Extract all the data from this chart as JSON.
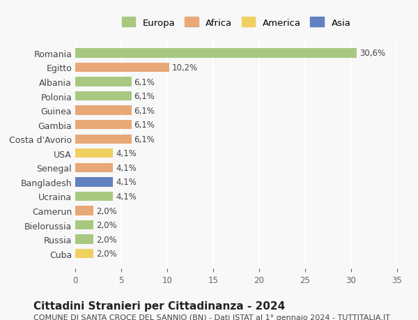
{
  "countries": [
    "Romania",
    "Egitto",
    "Albania",
    "Polonia",
    "Guinea",
    "Gambia",
    "Costa d'Avorio",
    "USA",
    "Senegal",
    "Bangladesh",
    "Ucraina",
    "Camerun",
    "Bielorussia",
    "Russia",
    "Cuba"
  ],
  "values": [
    30.6,
    10.2,
    6.1,
    6.1,
    6.1,
    6.1,
    6.1,
    4.1,
    4.1,
    4.1,
    4.1,
    2.0,
    2.0,
    2.0,
    2.0
  ],
  "continents": [
    "Europa",
    "Africa",
    "Europa",
    "Europa",
    "Africa",
    "Africa",
    "Africa",
    "America",
    "Africa",
    "Asia",
    "Europa",
    "Africa",
    "Europa",
    "Europa",
    "America"
  ],
  "continent_colors": {
    "Europa": "#a8c880",
    "Africa": "#e8a878",
    "America": "#f0d060",
    "Asia": "#6080c0"
  },
  "legend_order": [
    "Europa",
    "Africa",
    "America",
    "Asia"
  ],
  "xlim": [
    0,
    35
  ],
  "xticks": [
    0,
    5,
    10,
    15,
    20,
    25,
    30,
    35
  ],
  "title": "Cittadini Stranieri per Cittadinanza - 2024",
  "subtitle": "COMUNE DI SANTA CROCE DEL SANNIO (BN) - Dati ISTAT al 1° gennaio 2024 - TUTTITALIA.IT",
  "background_color": "#f8f8f8",
  "bar_label_fontsize": 8.5,
  "grid_color": "#ffffff",
  "title_fontsize": 11,
  "subtitle_fontsize": 8
}
